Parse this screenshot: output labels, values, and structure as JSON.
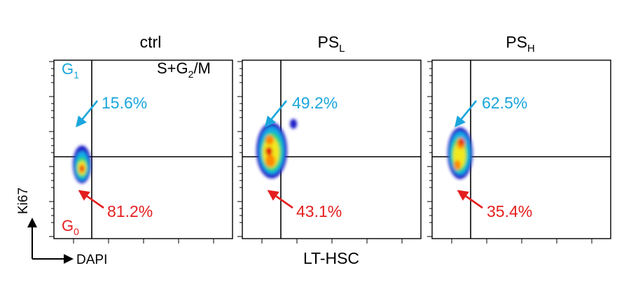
{
  "chart_data": {
    "type": "scatter",
    "population": "LT-HSC",
    "xlabel": "DAPI",
    "ylabel": "Ki67",
    "colors": {
      "g1": "#1aa6dc",
      "g0": "#e41e1e",
      "density_scale": [
        "#1b1bc8",
        "#18a8e8",
        "#22d67a",
        "#f2e81c",
        "#ff8a00",
        "#e01010"
      ]
    },
    "panels": [
      {
        "title_main": "ctrl",
        "title_sub": "",
        "g1_label_main": "G",
        "g1_label_sub": "1",
        "g0_label_main": "G",
        "g0_label_sub": "0",
        "sg2m_prefix": "S+G",
        "sg2m_sub": "2",
        "sg2m_suffix": "/M",
        "g1_percent": "15.6%",
        "g0_percent": "81.2%"
      },
      {
        "title_main": "PS",
        "title_sub": "L",
        "g1_percent": "49.2%",
        "g0_percent": "43.1%"
      },
      {
        "title_main": "PS",
        "title_sub": "H",
        "g1_percent": "62.5%",
        "g0_percent": "35.4%"
      }
    ]
  }
}
